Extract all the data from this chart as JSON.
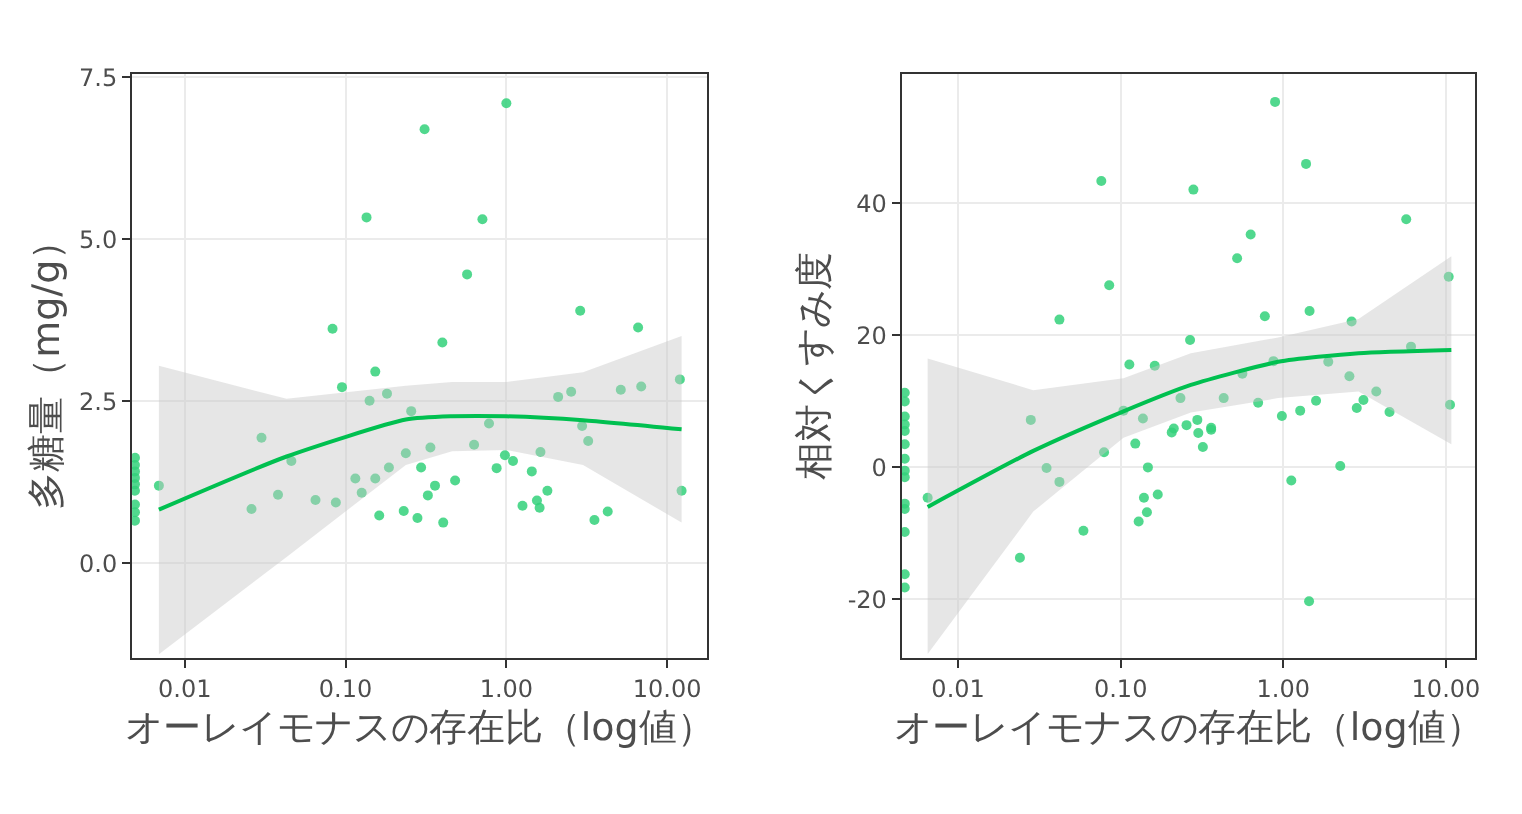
{
  "chart_data": [
    {
      "type": "scatter",
      "xlabel": "オーレイモナスの存在比（log値）",
      "ylabel": "多糖量（mg/g）",
      "log": "x",
      "grid": true,
      "marker": "circle",
      "xlim": [
        0.0047,
        17.8
      ],
      "xticks": [
        0.01,
        {
          "value": 0.1,
          "label": "0.10"
        },
        {
          "value": 1,
          "label": "1.00"
        },
        {
          "value": 10,
          "label": "10.00"
        }
      ],
      "ylim": [
        -1.46,
        7.56
      ],
      "yticks": [
        {
          "value": 0,
          "label": "0.0"
        },
        2.5,
        {
          "value": 5,
          "label": "5.0"
        },
        7.5
      ],
      "series": [
        {
          "color": "#33d17a",
          "x": [
            0.0049,
            0.0049,
            0.0049,
            0.0049,
            0.0049,
            0.0049,
            0.0049,
            0.0049,
            0.0049,
            0.0069,
            0.026,
            0.03,
            0.038,
            0.046,
            0.065,
            0.083,
            0.087,
            0.095,
            0.115,
            0.126,
            0.135,
            0.141,
            0.153,
            0.153,
            0.162,
            0.181,
            0.186,
            0.23,
            0.237,
            0.256,
            0.28,
            0.295,
            0.31,
            0.325,
            0.337,
            0.36,
            0.4,
            0.405,
            0.48,
            0.57,
            0.63,
            0.71,
            0.78,
            0.87,
            0.98,
            1.0,
            1.1,
            1.26,
            1.44,
            1.55,
            1.61,
            1.63,
            1.8,
            2.1,
            2.53,
            2.88,
            2.96,
            3.23,
            3.53,
            4.27,
            5.15,
            6.6,
            6.9,
            12.0,
            12.3
          ],
          "values": [
            1.63,
            1.52,
            1.42,
            1.32,
            1.22,
            1.12,
            0.91,
            0.79,
            0.66,
            1.2,
            0.84,
            1.94,
            1.06,
            1.58,
            0.98,
            3.62,
            0.94,
            2.72,
            1.31,
            1.09,
            5.34,
            2.51,
            2.96,
            1.31,
            0.74,
            2.62,
            1.48,
            0.81,
            1.7,
            2.35,
            0.7,
            1.48,
            6.7,
            1.05,
            1.79,
            1.2,
            3.41,
            0.63,
            1.28,
            4.46,
            1.83,
            5.31,
            2.16,
            1.47,
            1.67,
            7.1,
            1.58,
            0.89,
            1.42,
            0.97,
            0.86,
            1.72,
            1.12,
            2.57,
            2.65,
            3.9,
            2.12,
            1.89,
            0.67,
            0.8,
            2.68,
            3.64,
            2.73,
            2.84,
            1.12
          ]
        },
        {
          "type": "line",
          "marker": "none",
          "color": "#00c050",
          "x": [
            0.0069,
            0.043,
            0.237,
            0.46,
            1.0,
            3.0,
            12.3
          ],
          "values": [
            0.83,
            1.65,
            2.22,
            2.27,
            2.27,
            2.21,
            2.07
          ],
          "lower": [
            -1.4,
            0.1,
            1.52,
            1.73,
            1.75,
            1.52,
            0.63
          ],
          "upper": [
            3.05,
            2.54,
            2.74,
            2.8,
            2.8,
            2.95,
            3.51
          ]
        }
      ]
    },
    {
      "type": "scatter",
      "xlabel": "オーレイモナスの存在比（log値）",
      "ylabel": "相対くすみ度",
      "log": "x",
      "grid": true,
      "marker": "circle",
      "xlim": [
        0.0045,
        15.2
      ],
      "xticks": [
        0.01,
        {
          "value": 0.1,
          "label": "0.10"
        },
        {
          "value": 1,
          "label": "1.00"
        },
        {
          "value": 10,
          "label": "10.00"
        }
      ],
      "ylim": [
        -28.9,
        59.7
      ],
      "yticks": [
        -20,
        0,
        20,
        40
      ],
      "series": [
        {
          "color": "#33d17a",
          "x": [
            0.0047,
            0.0047,
            0.0047,
            0.0047,
            0.0047,
            0.0047,
            0.0047,
            0.0047,
            0.0047,
            0.0047,
            0.0047,
            0.0047,
            0.0047,
            0.0047,
            0.0065,
            0.024,
            0.028,
            0.035,
            0.042,
            0.042,
            0.059,
            0.076,
            0.079,
            0.085,
            0.104,
            0.113,
            0.123,
            0.129,
            0.137,
            0.139,
            0.145,
            0.147,
            0.162,
            0.169,
            0.206,
            0.212,
            0.233,
            0.254,
            0.267,
            0.28,
            0.296,
            0.3,
            0.32,
            0.36,
            0.36,
            0.43,
            0.52,
            0.56,
            0.63,
            0.7,
            0.77,
            0.87,
            0.89,
            0.98,
            1.12,
            1.27,
            1.38,
            1.45,
            1.44,
            1.59,
            1.89,
            2.24,
            2.55,
            2.63,
            2.83,
            3.11,
            3.73,
            4.5,
            5.7,
            6.1,
            10.4,
            10.6
          ],
          "values": [
            11.3,
            10.0,
            7.7,
            6.5,
            5.5,
            3.5,
            1.3,
            -0.5,
            -1.5,
            -5.5,
            -6.3,
            -9.8,
            -16.2,
            -18.2,
            -4.6,
            -13.7,
            7.2,
            -0.1,
            -2.2,
            22.4,
            -9.6,
            43.4,
            2.3,
            27.6,
            8.6,
            15.6,
            3.6,
            -8.2,
            7.4,
            -4.6,
            -6.8,
            0.0,
            15.4,
            -4.1,
            5.3,
            5.9,
            10.5,
            6.4,
            19.3,
            42.1,
            7.2,
            5.2,
            3.1,
            5.7,
            6.0,
            10.5,
            31.7,
            14.2,
            35.3,
            9.8,
            22.9,
            16.1,
            55.4,
            7.8,
            -2.0,
            8.6,
            46.0,
            23.7,
            -20.3,
            10.1,
            16.0,
            0.2,
            13.8,
            22.1,
            9.0,
            10.2,
            11.5,
            8.4,
            37.6,
            18.3,
            28.9,
            9.5
          ]
        },
        {
          "type": "line",
          "marker": "none",
          "color": "#00c050",
          "x": [
            0.0065,
            0.029,
            0.104,
            0.27,
            0.93,
            2.9,
            10.8
          ],
          "values": [
            -6.0,
            2.5,
            8.5,
            12.5,
            16.0,
            17.3,
            17.8
          ],
          "lower": [
            -28.3,
            -6.7,
            4.5,
            8.3,
            10.5,
            11.5,
            3.5
          ],
          "upper": [
            16.5,
            11.7,
            13.5,
            17.3,
            19.7,
            22.5,
            32.0
          ]
        }
      ]
    }
  ]
}
